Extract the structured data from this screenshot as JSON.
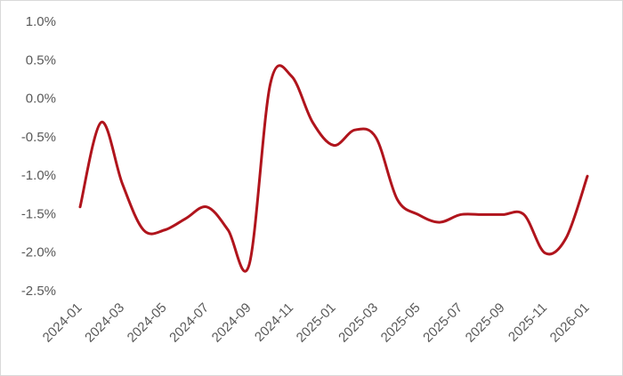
{
  "chart_data": {
    "type": "line",
    "categories": [
      "2024-01",
      null,
      "2024-03",
      null,
      "2024-05",
      null,
      "2024-07",
      null,
      "2024-09",
      null,
      "2024-11",
      null,
      "2025-01",
      null,
      "2025-03",
      null,
      "2025-05",
      null,
      "2025-07",
      null,
      "2025-09",
      null,
      "2025-11",
      null,
      "2026-01"
    ],
    "series": [
      {
        "color": "#b0141c",
        "values": [
          -1.4,
          -0.3,
          -1.1,
          -1.7,
          -1.7,
          -1.55,
          -1.4,
          -1.7,
          -2.15,
          0.2,
          0.3,
          -0.3,
          -0.6,
          -0.4,
          -0.5,
          -1.3,
          -1.5,
          -1.6,
          -1.5,
          -1.5,
          -1.5,
          -1.5,
          -2.0,
          -1.8,
          -1.0
        ]
      }
    ],
    "ylim": [
      -2.5,
      1.0
    ],
    "yticks": [
      {
        "value": -2.5,
        "label": "-2.5%"
      },
      {
        "value": -2.0,
        "label": "-2.0%"
      },
      {
        "value": -1.5,
        "label": "-1.5%"
      },
      {
        "value": -1.0,
        "label": "-1.0%"
      },
      {
        "value": -0.5,
        "label": "-0.5%"
      },
      {
        "value": 0.0,
        "label": "0.0%"
      },
      {
        "value": 0.5,
        "label": "0.5%"
      },
      {
        "value": 1.0,
        "label": "1.0%"
      }
    ],
    "grid": false
  }
}
